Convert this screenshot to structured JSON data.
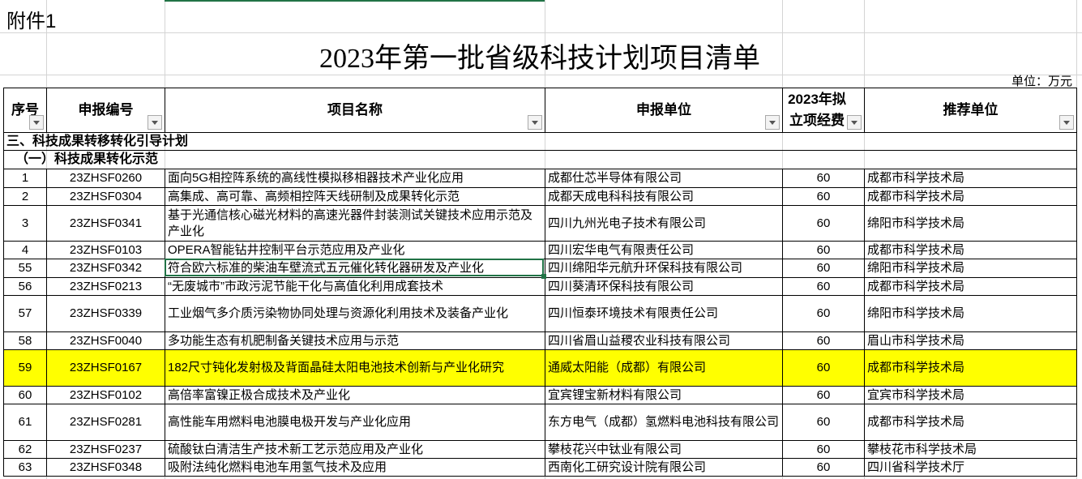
{
  "attachment_label": "附件1",
  "title": "2023年第一批省级科技计划项目清单",
  "unit": "单位：万元",
  "colors": {
    "highlight": "#ffff00",
    "selection": "#217346"
  },
  "headers": [
    "序号",
    "申报编号",
    "项目名称",
    "申报单位",
    "2023年拟立项经费",
    "推荐单位"
  ],
  "section": "三、科技成果转移转化引导计划",
  "subsection": "（一）科技成果转化示范",
  "rows": [
    {
      "no": "1",
      "code": "23ZHSF0260",
      "name": "面向5G相控阵系统的高线性模拟移相器技术产业化应用",
      "unit": "成都仕芯半导体有限公司",
      "fund": "60",
      "rec": "成都市科学技术局"
    },
    {
      "no": "2",
      "code": "23ZHSF0304",
      "name": "高集成、高可靠、高频相控阵天线研制及成果转化示范",
      "unit": "成都天成电科科技有限公司",
      "fund": "60",
      "rec": "成都市科学技术局"
    },
    {
      "no": "3",
      "code": "23ZHSF0341",
      "name": "基于光通信核心磁光材料的高速光器件封装测试关键技术应用示范及产业化",
      "unit": "四川九州光电子技术有限公司",
      "fund": "60",
      "rec": "绵阳市科学技术局"
    },
    {
      "no": "4",
      "code": "23ZHSF0103",
      "name": "OPERA智能钻井控制平台示范应用及产业化",
      "unit": "四川宏华电气有限责任公司",
      "fund": "60",
      "rec": "成都市科学技术局"
    },
    {
      "no": "55",
      "code": "23ZHSF0342",
      "name": "符合欧六标准的柴油车壁流式五元催化转化器研发及产业化",
      "unit": "四川绵阳华元航升环保科技有限公司",
      "fund": "60",
      "rec": "绵阳市科学技术局"
    },
    {
      "no": "56",
      "code": "23ZHSF0213",
      "name": "“无废城市”市政污泥节能干化与高值化利用成套技术",
      "unit": "四川葵清环保科技有限公司",
      "fund": "60",
      "rec": "成都市科学技术局"
    },
    {
      "no": "57",
      "code": "23ZHSF0339",
      "name": "工业烟气多介质污染物协同处理与资源化利用技术及装备产业化",
      "unit": "四川恒泰环境技术有限责任公司",
      "fund": "60",
      "rec": "绵阳市科学技术局"
    },
    {
      "no": "58",
      "code": "23ZHSF0040",
      "name": "多功能生态有机肥制备关键技术应用与示范",
      "unit": "四川省眉山益稷农业科技有限公司",
      "fund": "60",
      "rec": "眉山市科学技术局"
    },
    {
      "no": "59",
      "code": "23ZHSF0167",
      "name": "182尺寸钝化发射极及背面晶硅太阳电池技术创新与产业化研究",
      "unit": "通威太阳能（成都）有限公司",
      "fund": "60",
      "rec": "成都市科学技术局"
    },
    {
      "no": "60",
      "code": "23ZHSF0102",
      "name": "高倍率富镍正极合成技术及产业化",
      "unit": "宜宾锂宝新材料有限公司",
      "fund": "60",
      "rec": "宜宾市科学技术局"
    },
    {
      "no": "61",
      "code": "23ZHSF0281",
      "name": "高性能车用燃料电池膜电极开发与产业化应用",
      "unit": "东方电气（成都）氢燃料电池科技有限公司",
      "fund": "60",
      "rec": "成都市科学技术局"
    },
    {
      "no": "62",
      "code": "23ZHSF0237",
      "name": "硫酸钛白清洁生产技术新工艺示范应用及产业化",
      "unit": "攀枝花兴中钛业有限公司",
      "fund": "60",
      "rec": "攀枝花市科学技术局"
    },
    {
      "no": "63",
      "code": "23ZHSF0348",
      "name": "吸附法纯化燃料电池车用氢气技术及应用",
      "unit": "西南化工研究设计院有限公司",
      "fund": "60",
      "rec": "四川省科学技术厅"
    }
  ]
}
